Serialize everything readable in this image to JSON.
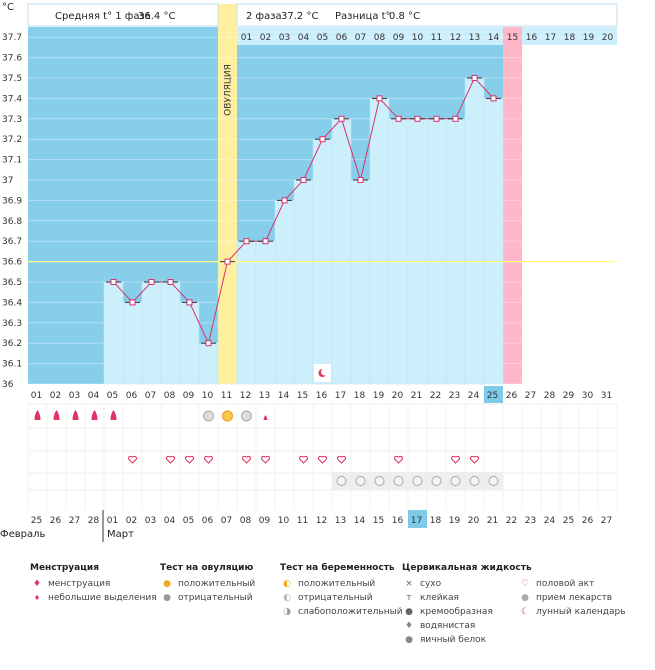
{
  "header": {
    "unit": "°C",
    "phase1_label": "Средняя t° 1 фаза",
    "phase1_value": "36.4 °C",
    "phase2_label": "2 фаза",
    "phase2_value": "37.2 °C",
    "diff_label": "Разница t°",
    "diff_value": "0.8 °C",
    "ovulation_label": "ОВУЛЯЦИЯ"
  },
  "colors": {
    "phase_bg": "#87CEEB",
    "bar_fill": "#CDEFFC",
    "ovulation": "#FFF0A0",
    "line": "#D6336C",
    "marker": "#D6336C",
    "today_col": "#FFB6C8",
    "coverline": "#FFFF80",
    "today_day": "#7DCBE8"
  },
  "chart_data": {
    "type": "line",
    "title": "",
    "ylabel": "°C",
    "ylim": [
      36.0,
      37.75
    ],
    "y_ticks": [
      "37.7",
      "37.6",
      "37.5",
      "37.4",
      "37.3",
      "37.2",
      "37.1",
      "37",
      "36.9",
      "36.8",
      "36.7",
      "36.6",
      "36.5",
      "36.4",
      "36.3",
      "36.2",
      "36.1",
      "36"
    ],
    "cycle_days": [
      "01",
      "02",
      "03",
      "04",
      "05",
      "06",
      "07",
      "08",
      "09",
      "10",
      "11",
      "12",
      "13",
      "14",
      "15",
      "16",
      "17",
      "18",
      "19",
      "20",
      "21",
      "22",
      "23",
      "24",
      "25",
      "26",
      "27",
      "28",
      "29",
      "30",
      "31"
    ],
    "phase2_day_labels": [
      "01",
      "02",
      "03",
      "04",
      "05",
      "06",
      "07",
      "08",
      "09",
      "10",
      "11",
      "12",
      "13",
      "14",
      "15",
      "16",
      "17",
      "18",
      "19",
      "20"
    ],
    "ovulation_day": "11",
    "highlight_phase2_day": "15",
    "today_cycle_day": "25",
    "coverline": 36.6,
    "series": [
      {
        "values": [
          null,
          null,
          null,
          null,
          36.5,
          36.4,
          36.5,
          36.5,
          36.4,
          36.2,
          36.6,
          36.7,
          36.7,
          36.9,
          37.0,
          37.2,
          37.3,
          37.0,
          37.4,
          37.3,
          37.3,
          37.3,
          37.3,
          37.5,
          37.4,
          null,
          null,
          null,
          null,
          null,
          null
        ]
      }
    ],
    "calendar_dates": [
      "25",
      "26",
      "27",
      "28",
      "01",
      "02",
      "03",
      "04",
      "05",
      "06",
      "07",
      "08",
      "09",
      "10",
      "11",
      "12",
      "13",
      "14",
      "15",
      "16",
      "17",
      "18",
      "19",
      "20",
      "21",
      "22",
      "23",
      "24",
      "25",
      "26",
      "27"
    ],
    "weekend_dates_idx": [
      4,
      5,
      11,
      12,
      18,
      19,
      25,
      26
    ],
    "months": [
      "Февраль",
      "Март"
    ]
  },
  "markers": {
    "menstruation": [
      1,
      1,
      1,
      1,
      0
    ],
    "small_discharge_day": 5,
    "ovulation_test": {
      "negative": [
        10,
        12
      ],
      "positive": [
        11
      ]
    },
    "small_discharge2_day": 13,
    "intercourse": [
      6,
      8,
      9,
      10,
      12,
      13,
      15,
      16,
      17,
      20,
      23,
      24
    ],
    "medication": [
      17,
      18,
      19,
      20,
      21,
      22,
      23,
      24,
      25
    ],
    "moon_day": 16
  },
  "legend": {
    "menstruation": {
      "title": "Менструация",
      "items": [
        "менструация",
        "небольшие выделения"
      ]
    },
    "ovulation_test": {
      "title": "Тест на овуляцию",
      "items": [
        "положительный",
        "отрицательный"
      ]
    },
    "pregnancy_test": {
      "title": "Тест на беременность",
      "items": [
        "положительный",
        "отрицательный",
        "слабоположительный"
      ]
    },
    "cervical": {
      "title": "Цервикальная жидкость",
      "items": [
        "сухо",
        "клейкая",
        "кремообразная",
        "водянистая",
        "яичный белок"
      ]
    },
    "other": {
      "items": [
        "половой акт",
        "прием лекарств",
        "лунный календарь"
      ]
    }
  }
}
